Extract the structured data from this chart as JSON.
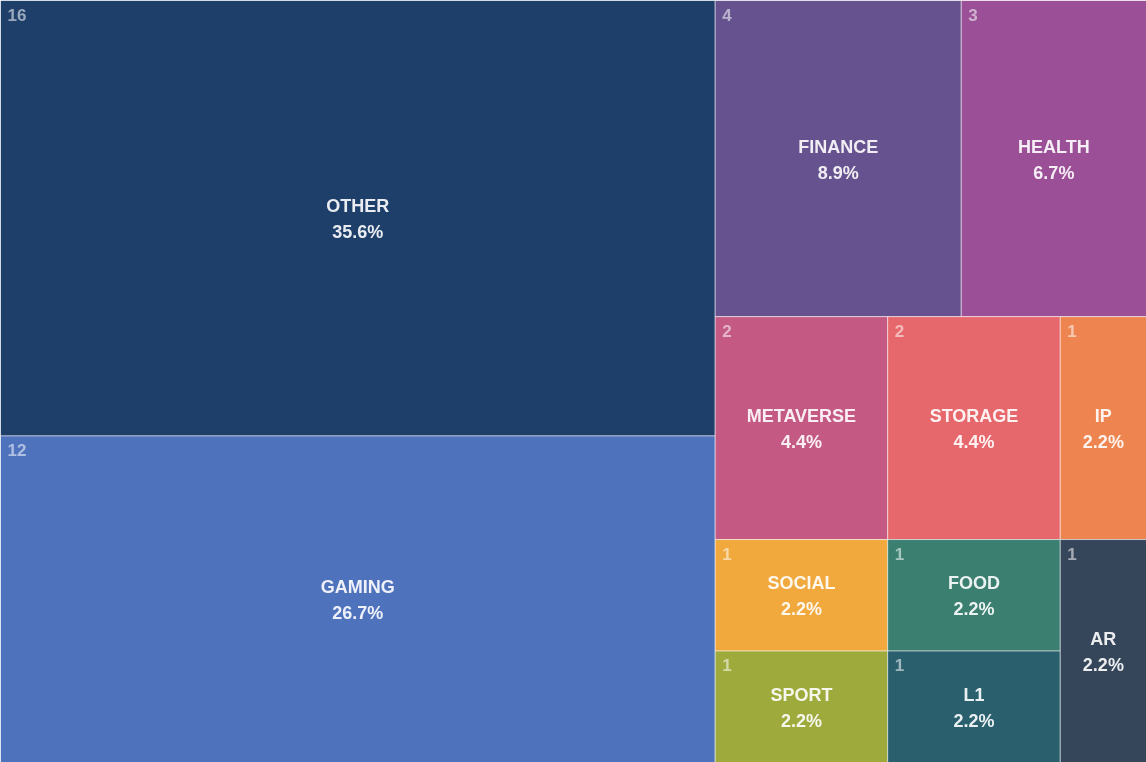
{
  "chart_data": {
    "type": "other",
    "categories": [
      "OTHER",
      "GAMING",
      "FINANCE",
      "HEALTH",
      "METAVERSE",
      "STORAGE",
      "IP",
      "SOCIAL",
      "SPORT",
      "FOOD",
      "L1",
      "AR"
    ],
    "values": [
      35.6,
      26.7,
      8.9,
      6.7,
      4.4,
      4.4,
      2.2,
      2.2,
      2.2,
      2.2,
      2.2,
      2.2
    ],
    "value_labels": [
      "35.6%",
      "26.7%",
      "8.9%",
      "6.7%",
      "4.4%",
      "4.4%",
      "2.2%",
      "2.2%",
      "2.2%",
      "2.2%",
      "2.2%",
      "2.2%"
    ],
    "annotations": [
      "16",
      "12",
      "4",
      "3",
      "2",
      "2",
      "1",
      "1",
      "1",
      "1",
      "1",
      "1"
    ],
    "colors": [
      "#1f3f6b",
      "#4f72bd",
      "#66528e",
      "#9a4f96",
      "#c45a84",
      "#e7686c",
      "#ee8550",
      "#f1a93e",
      "#9eab3c",
      "#3a7f6f",
      "#2a5f6e",
      "#35465a"
    ]
  }
}
